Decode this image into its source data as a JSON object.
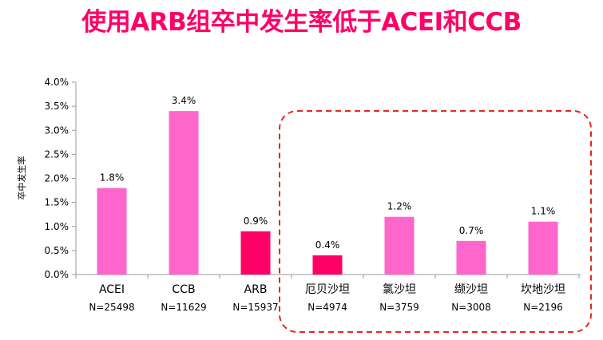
{
  "title": "使用ARB组卒中发生率低于ACEI和CCB",
  "colors": {
    "title": "#ff0066",
    "bar_light": "#ff66cc",
    "bar_highlight": "#ff0066",
    "callout_border": "#e8261f"
  },
  "chart_data": {
    "type": "bar",
    "ylabel": "卒中发生率",
    "ylim": [
      0,
      0.04
    ],
    "y_ticks": [
      0,
      0.005,
      0.01,
      0.015,
      0.02,
      0.025,
      0.03,
      0.035,
      0.04
    ],
    "y_tick_labels": [
      "0.0%",
      "0.5%",
      "1.0%",
      "1.5%",
      "2.0%",
      "2.5%",
      "3.0%",
      "3.5%",
      "4.0%"
    ],
    "grid": false,
    "categories": [
      "ACEI",
      "CCB",
      "ARB",
      "厄贝沙坦",
      "氯沙坦",
      "缬沙坦",
      "坎地沙坦"
    ],
    "sample_sizes": [
      "N=25498",
      "N=11629",
      "N=15937",
      "N=4974",
      "N=3759",
      "N=3008",
      "N=2196"
    ],
    "values": [
      0.018,
      0.034,
      0.009,
      0.004,
      0.012,
      0.007,
      0.011
    ],
    "value_labels": [
      "1.8%",
      "3.4%",
      "0.9%",
      "0.4%",
      "1.2%",
      "0.7%",
      "1.1%"
    ],
    "highlighted": [
      false,
      false,
      true,
      true,
      false,
      false,
      false
    ],
    "callout": {
      "style": "dashed rounded rectangle",
      "encloses": [
        "厄贝沙坦",
        "氯沙坦",
        "缬沙坦",
        "坎地沙坦"
      ]
    }
  }
}
